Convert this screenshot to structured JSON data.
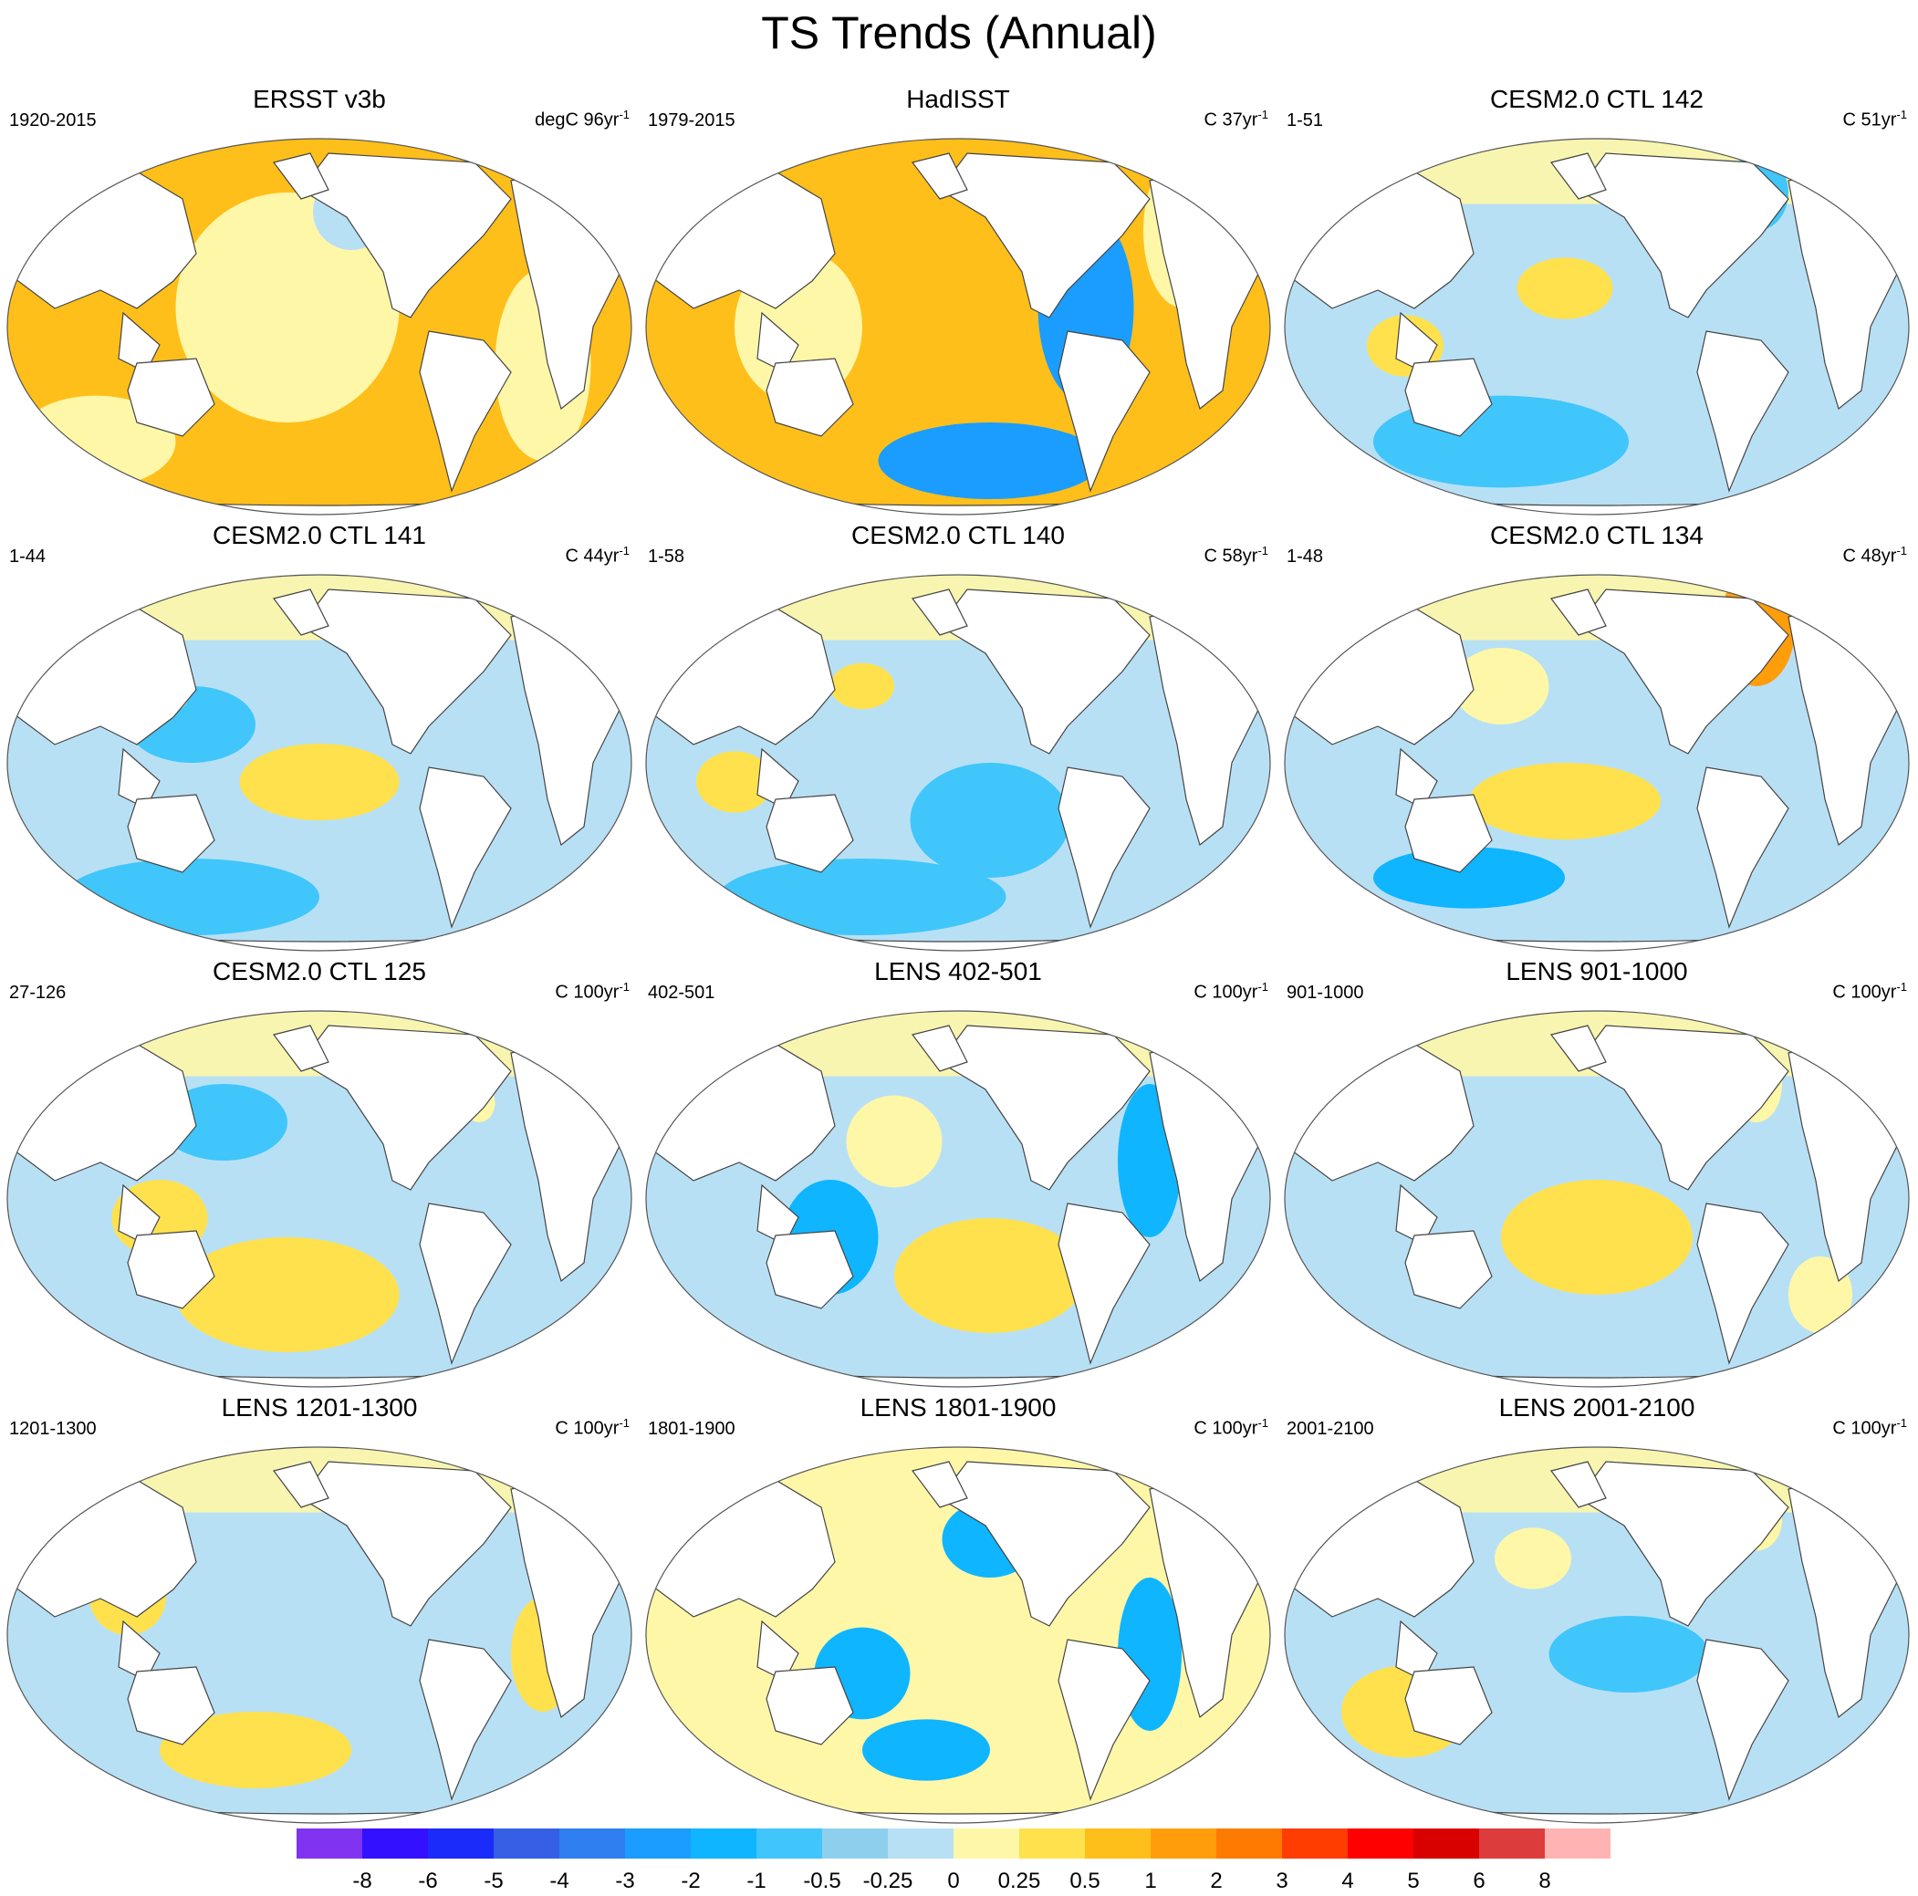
{
  "title": "TS Trends (Annual)",
  "panels": [
    {
      "title": "ERSST v3b",
      "period": "1920-2015",
      "units": "degC 96yr",
      "exp": "-1",
      "pattern": "warm",
      "blobs": [
        [
          0.45,
          0.45,
          0.35,
          0.3,
          1
        ],
        [
          0.85,
          0.6,
          0.15,
          0.25,
          1
        ],
        [
          0.15,
          0.8,
          0.25,
          0.12,
          1
        ],
        [
          0.55,
          0.2,
          0.12,
          0.1,
          0
        ]
      ]
    },
    {
      "title": "HadISST",
      "period": "1979-2015",
      "units": "C 37yr",
      "exp": "-1",
      "pattern": "warm",
      "blobs": [
        [
          0.7,
          0.45,
          0.15,
          0.25,
          -3
        ],
        [
          0.55,
          0.85,
          0.35,
          0.1,
          -3
        ],
        [
          0.25,
          0.5,
          0.2,
          0.2,
          1
        ],
        [
          0.85,
          0.25,
          0.12,
          0.2,
          1
        ]
      ]
    },
    {
      "title": "CESM2.0 CTL 142",
      "period": "1-51",
      "units": "C 51yr",
      "exp": "-1",
      "pattern": "cool",
      "blobs": [
        [
          0.35,
          0.8,
          0.4,
          0.12,
          -1
        ],
        [
          0.75,
          0.15,
          0.1,
          0.1,
          -1
        ],
        [
          0.45,
          0.4,
          0.15,
          0.08,
          2
        ],
        [
          0.2,
          0.55,
          0.12,
          0.08,
          2
        ]
      ]
    },
    {
      "title": "CESM2.0 CTL 141",
      "period": "1-44",
      "units": "C 44yr",
      "exp": "-1",
      "pattern": "cool",
      "blobs": [
        [
          0.3,
          0.4,
          0.2,
          0.1,
          -1
        ],
        [
          0.3,
          0.85,
          0.4,
          0.1,
          -1
        ],
        [
          0.5,
          0.55,
          0.25,
          0.1,
          2
        ],
        [
          0.25,
          0.3,
          0.1,
          0.08,
          1
        ]
      ]
    },
    {
      "title": "CESM2.0 CTL 140",
      "period": "1-58",
      "units": "C 58yr",
      "exp": "-1",
      "pattern": "cool",
      "blobs": [
        [
          0.55,
          0.65,
          0.25,
          0.15,
          -1
        ],
        [
          0.35,
          0.85,
          0.45,
          0.1,
          -1
        ],
        [
          0.35,
          0.3,
          0.1,
          0.06,
          2
        ],
        [
          0.15,
          0.55,
          0.12,
          0.08,
          2
        ]
      ]
    },
    {
      "title": "CESM2.0 CTL 134",
      "period": "1-48",
      "units": "C 48yr",
      "exp": "-1",
      "pattern": "mixed",
      "blobs": [
        [
          0.75,
          0.15,
          0.12,
          0.15,
          3
        ],
        [
          0.35,
          0.3,
          0.15,
          0.1,
          1
        ],
        [
          0.45,
          0.6,
          0.3,
          0.1,
          2
        ],
        [
          0.3,
          0.8,
          0.3,
          0.08,
          -2
        ]
      ]
    },
    {
      "title": "CESM2.0 CTL 125",
      "period": "27-126",
      "units": "C 100yr",
      "exp": "-1",
      "pattern": "cool",
      "blobs": [
        [
          0.35,
          0.3,
          0.2,
          0.1,
          -1
        ],
        [
          0.45,
          0.75,
          0.35,
          0.15,
          2
        ],
        [
          0.25,
          0.55,
          0.15,
          0.1,
          2
        ],
        [
          0.75,
          0.25,
          0.05,
          0.05,
          1
        ]
      ]
    },
    {
      "title": "LENS 402-501",
      "period": "402-501",
      "units": "C 100yr",
      "exp": "-1",
      "pattern": "mixed",
      "blobs": [
        [
          0.4,
          0.35,
          0.15,
          0.12,
          1
        ],
        [
          0.3,
          0.6,
          0.15,
          0.15,
          -2
        ],
        [
          0.55,
          0.7,
          0.3,
          0.15,
          2
        ],
        [
          0.8,
          0.4,
          0.1,
          0.2,
          -2
        ]
      ]
    },
    {
      "title": "LENS 901-1000",
      "period": "901-1000",
      "units": "C 100yr",
      "exp": "-1",
      "pattern": "mixed",
      "blobs": [
        [
          0.25,
          0.3,
          0.1,
          0.08,
          1
        ],
        [
          0.75,
          0.2,
          0.08,
          0.1,
          1
        ],
        [
          0.5,
          0.6,
          0.3,
          0.15,
          2
        ],
        [
          0.85,
          0.75,
          0.1,
          0.1,
          1
        ]
      ]
    },
    {
      "title": "LENS 1201-1300",
      "period": "1201-1300",
      "units": "C 100yr",
      "exp": "-1",
      "pattern": "cool",
      "blobs": [
        [
          0.7,
          0.15,
          0.06,
          0.08,
          1
        ],
        [
          0.4,
          0.8,
          0.3,
          0.1,
          2
        ],
        [
          0.2,
          0.4,
          0.12,
          0.1,
          2
        ],
        [
          0.85,
          0.55,
          0.1,
          0.15,
          2
        ]
      ]
    },
    {
      "title": "LENS 1801-1900",
      "period": "1801-1900",
      "units": "C 100yr",
      "exp": "-1",
      "pattern": "warmpale",
      "blobs": [
        [
          0.55,
          0.25,
          0.15,
          0.1,
          -2
        ],
        [
          0.35,
          0.6,
          0.15,
          0.12,
          -2
        ],
        [
          0.8,
          0.55,
          0.1,
          0.2,
          -2
        ],
        [
          0.45,
          0.8,
          0.2,
          0.08,
          -2
        ]
      ]
    },
    {
      "title": "LENS 2001-2100",
      "period": "2001-2100",
      "units": "C 100yr",
      "exp": "-1",
      "pattern": "cool",
      "blobs": [
        [
          0.4,
          0.3,
          0.12,
          0.08,
          1
        ],
        [
          0.2,
          0.7,
          0.2,
          0.12,
          2
        ],
        [
          0.75,
          0.2,
          0.08,
          0.08,
          1
        ],
        [
          0.55,
          0.55,
          0.25,
          0.1,
          -1
        ]
      ]
    }
  ],
  "colorbar": {
    "colors": [
      "#8033f0",
      "#3310ff",
      "#1a2bfa",
      "#3560e6",
      "#2f7ff0",
      "#1a9dff",
      "#0fb5ff",
      "#40c6fa",
      "#8fcfee",
      "#b8e0f5",
      "#fff7a8",
      "#ffe14d",
      "#ffbf1a",
      "#ff9e0a",
      "#ff7a00",
      "#ff3d00",
      "#ff0000",
      "#d90000",
      "#dc3c3c",
      "#ffb3b3"
    ],
    "labels": [
      "-8",
      "-6",
      "-5",
      "-4",
      "-3",
      "-2",
      "-1",
      "-0.5",
      "-0.25",
      "0",
      "0.25",
      "0.5",
      "1",
      "2",
      "3",
      "4",
      "5",
      "6",
      "8"
    ]
  }
}
